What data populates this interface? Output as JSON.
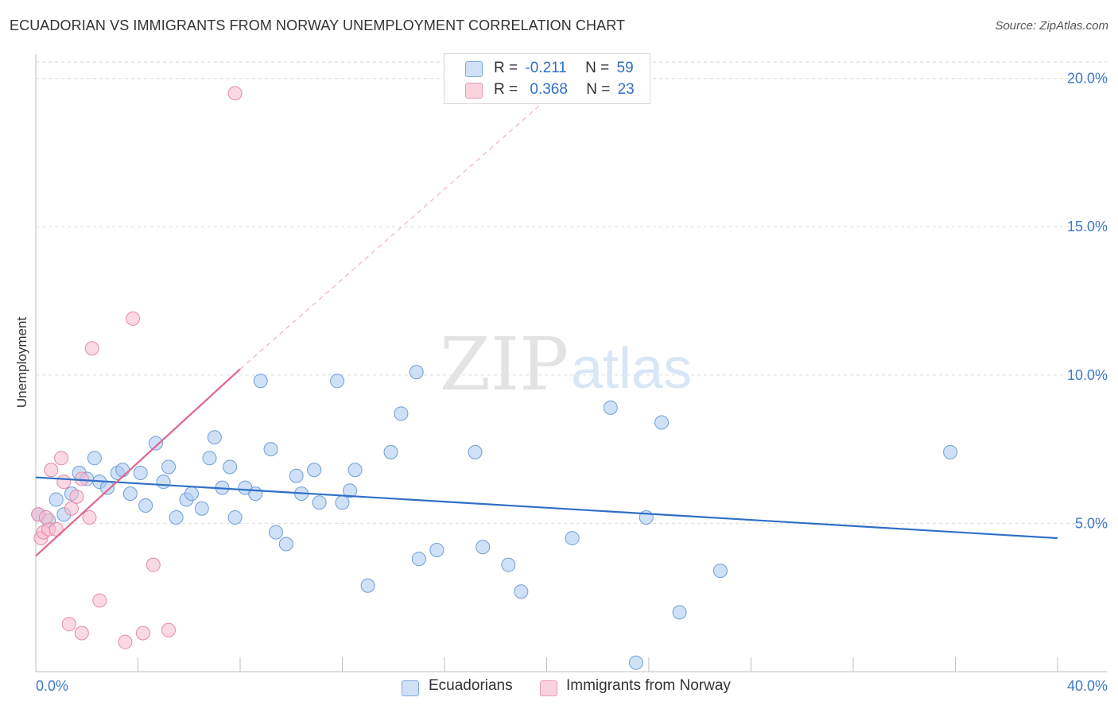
{
  "title": "ECUADORIAN VS IMMIGRANTS FROM NORWAY UNEMPLOYMENT CORRELATION CHART",
  "source": "Source: ZipAtlas.com",
  "watermark": {
    "zip": "ZIP",
    "atlas": "atlas"
  },
  "legend_stats": [
    {
      "r_label": "R =",
      "r_value": "-0.211",
      "n_label": "N =",
      "n_value": "59",
      "color": "#a9c8f0"
    },
    {
      "r_label": "R =",
      "r_value": "0.368",
      "n_label": "N =",
      "n_value": "23",
      "color": "#f7b9cc"
    }
  ],
  "chart_data": {
    "type": "scatter",
    "ylabel": "Unemployment",
    "xlim": [
      0,
      40
    ],
    "ylim": [
      0,
      20.5
    ],
    "x_tick_labels": [
      "0.0%",
      "40.0%"
    ],
    "y_ticks": [
      5,
      10,
      15,
      20
    ],
    "y_tick_labels": [
      "5.0%",
      "10.0%",
      "15.0%",
      "20.0%"
    ],
    "grid": true,
    "legend_position": "bottom",
    "series": [
      {
        "name": "Ecuadorians",
        "color": "#a9c8f0",
        "stroke": "#6f9ed8",
        "trend_color": "#2f6fc6",
        "trend": {
          "x0": 0,
          "y0": 6.55,
          "x1": 40,
          "y1": 4.5
        },
        "points": [
          [
            0.1,
            5.3
          ],
          [
            0.5,
            5.1
          ],
          [
            0.8,
            5.8
          ],
          [
            1.1,
            5.3
          ],
          [
            1.4,
            6.0
          ],
          [
            1.7,
            6.7
          ],
          [
            2.0,
            6.5
          ],
          [
            2.3,
            7.2
          ],
          [
            2.5,
            6.4
          ],
          [
            2.8,
            6.2
          ],
          [
            3.2,
            6.7
          ],
          [
            3.4,
            6.8
          ],
          [
            3.7,
            6.0
          ],
          [
            4.1,
            6.7
          ],
          [
            4.3,
            5.6
          ],
          [
            4.7,
            7.7
          ],
          [
            5.0,
            6.4
          ],
          [
            5.2,
            6.9
          ],
          [
            5.5,
            5.2
          ],
          [
            5.9,
            5.8
          ],
          [
            6.1,
            6.0
          ],
          [
            6.5,
            5.5
          ],
          [
            6.8,
            7.2
          ],
          [
            7.0,
            7.9
          ],
          [
            7.3,
            6.2
          ],
          [
            7.6,
            6.9
          ],
          [
            7.8,
            5.2
          ],
          [
            8.2,
            6.2
          ],
          [
            8.6,
            6.0
          ],
          [
            8.8,
            9.8
          ],
          [
            9.2,
            7.5
          ],
          [
            9.4,
            4.7
          ],
          [
            9.8,
            4.3
          ],
          [
            10.2,
            6.6
          ],
          [
            10.4,
            6.0
          ],
          [
            10.9,
            6.8
          ],
          [
            11.1,
            5.7
          ],
          [
            11.8,
            9.8
          ],
          [
            12.0,
            5.7
          ],
          [
            12.3,
            6.1
          ],
          [
            12.5,
            6.8
          ],
          [
            13.0,
            2.9
          ],
          [
            13.9,
            7.4
          ],
          [
            14.3,
            8.7
          ],
          [
            14.9,
            10.1
          ],
          [
            15.0,
            3.8
          ],
          [
            15.7,
            4.1
          ],
          [
            17.2,
            7.4
          ],
          [
            17.5,
            4.2
          ],
          [
            18.5,
            3.6
          ],
          [
            19.0,
            2.7
          ],
          [
            21.0,
            4.5
          ],
          [
            22.5,
            8.9
          ],
          [
            23.5,
            0.3
          ],
          [
            23.9,
            5.2
          ],
          [
            24.5,
            8.4
          ],
          [
            25.2,
            2.0
          ],
          [
            26.8,
            3.4
          ],
          [
            35.8,
            7.4
          ]
        ]
      },
      {
        "name": "Immigrants from Norway",
        "color": "#f7b9cc",
        "stroke": "#e58aa6",
        "trend_color": "#e0668f",
        "trend": {
          "x0": 0,
          "y0": 3.9,
          "x1": 8.0,
          "y1": 10.2
        },
        "trend_dashed_to": {
          "x": 20.0,
          "y": 19.3
        },
        "points": [
          [
            0.1,
            5.3
          ],
          [
            0.2,
            4.5
          ],
          [
            0.3,
            4.7
          ],
          [
            0.5,
            4.8
          ],
          [
            0.6,
            6.8
          ],
          [
            0.8,
            4.8
          ],
          [
            1.0,
            7.2
          ],
          [
            1.1,
            6.4
          ],
          [
            1.3,
            1.6
          ],
          [
            1.4,
            5.5
          ],
          [
            1.6,
            5.9
          ],
          [
            1.8,
            6.5
          ],
          [
            1.8,
            1.3
          ],
          [
            2.1,
            5.2
          ],
          [
            2.2,
            10.9
          ],
          [
            2.5,
            2.4
          ],
          [
            3.5,
            1.0
          ],
          [
            3.8,
            11.9
          ],
          [
            4.2,
            1.3
          ],
          [
            4.6,
            3.6
          ],
          [
            5.2,
            1.4
          ],
          [
            7.8,
            19.5
          ],
          [
            0.4,
            5.2
          ]
        ]
      }
    ]
  }
}
